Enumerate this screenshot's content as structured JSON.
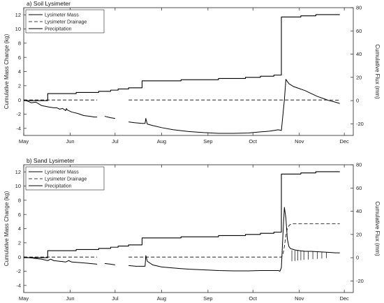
{
  "chart_data": [
    {
      "type": "line",
      "title": "a) Soil Lysimeter",
      "ylabel": "Cumulative Mass Change (kg)",
      "y2label": "Cumulative Flux (mm)",
      "ylim": [
        -5,
        13
      ],
      "y2lim": [
        -30,
        80
      ],
      "yticks": [
        -4,
        -2,
        0,
        2,
        4,
        6,
        8,
        10,
        12
      ],
      "y2ticks": [
        -20,
        0,
        20,
        40,
        60,
        80
      ],
      "xlim": [
        0,
        220
      ],
      "x_unit": "days since May 1",
      "xticks": [
        {
          "x": 0,
          "label": "May"
        },
        {
          "x": 31,
          "label": "Jun"
        },
        {
          "x": 61,
          "label": "Jul"
        },
        {
          "x": 92,
          "label": "Aug"
        },
        {
          "x": 123,
          "label": "Sep"
        },
        {
          "x": 153,
          "label": "Oct"
        },
        {
          "x": 184,
          "label": "Nov"
        },
        {
          "x": 214,
          "label": "Dec"
        }
      ],
      "legend_position": "top-left",
      "series": [
        {
          "name": "Lysimeter Mass",
          "style": "solid",
          "width": 1.0,
          "axis": "left",
          "segments": [
            [
              [
                0,
                0
              ],
              [
                3,
                -0.2
              ],
              [
                5,
                -0.4
              ],
              [
                8,
                -0.3
              ],
              [
                12,
                -0.8
              ],
              [
                17,
                -1.0
              ],
              [
                20,
                -1.1
              ],
              [
                22,
                -1.1
              ],
              [
                24,
                -1.3
              ],
              [
                26,
                -1.2
              ],
              [
                28,
                -1.5
              ],
              [
                28.5,
                -1.2
              ],
              [
                29,
                -1.4
              ],
              [
                32,
                -1.7
              ],
              [
                36,
                -1.9
              ],
              [
                40,
                -2.2
              ],
              [
                44,
                -2.3
              ],
              [
                47,
                -2.4
              ],
              [
                49,
                -2.4
              ]
            ],
            [
              [
                54,
                -2.3
              ],
              [
                58,
                -2.5
              ],
              [
                61,
                -2.6
              ]
            ],
            [
              [
                70,
                -3.1
              ],
              [
                74,
                -3.2
              ],
              [
                79,
                -3.3
              ],
              [
                81,
                -3.3
              ],
              [
                81.5,
                -2.6
              ],
              [
                82.5,
                -3.4
              ],
              [
                86,
                -3.6
              ],
              [
                92,
                -3.9
              ],
              [
                100,
                -4.2
              ],
              [
                110,
                -4.45
              ],
              [
                120,
                -4.6
              ],
              [
                130,
                -4.7
              ],
              [
                140,
                -4.7
              ],
              [
                150,
                -4.65
              ],
              [
                158,
                -4.5
              ],
              [
                164,
                -4.4
              ],
              [
                170,
                -4.2
              ],
              [
                172,
                -4.3
              ],
              [
                174,
                0.0
              ],
              [
                175,
                2.9
              ],
              [
                177,
                2.3
              ],
              [
                180,
                1.9
              ],
              [
                184,
                1.6
              ],
              [
                188,
                1.3
              ],
              [
                192,
                0.9
              ],
              [
                196,
                0.5
              ],
              [
                200,
                0.2
              ],
              [
                204,
                -0.1
              ],
              [
                208,
                -0.3
              ],
              [
                211,
                -0.5
              ]
            ]
          ]
        },
        {
          "name": "Lysimeter Drainage",
          "style": "dashed",
          "width": 0.8,
          "axis": "left",
          "segments": [
            [
              [
                0,
                0
              ],
              [
                49,
                0
              ]
            ],
            [
              [
                70,
                0
              ],
              [
                204,
                0
              ],
              [
                211,
                -0.05
              ]
            ]
          ]
        },
        {
          "name": "Precipitation",
          "style": "solid",
          "width": 1.1,
          "axis": "right",
          "segments": [
            [
              [
                0,
                0
              ],
              [
                16,
                0
              ],
              [
                16,
                6
              ],
              [
                35,
                6
              ],
              [
                35,
                7
              ],
              [
                50,
                7
              ],
              [
                50,
                8
              ],
              [
                58,
                8
              ],
              [
                58,
                9
              ],
              [
                63,
                9
              ],
              [
                63,
                10
              ],
              [
                70,
                10
              ],
              [
                70,
                11
              ],
              [
                79,
                11
              ],
              [
                79,
                17
              ],
              [
                105,
                17
              ],
              [
                105,
                18
              ],
              [
                130,
                18
              ],
              [
                130,
                19
              ],
              [
                148,
                19
              ],
              [
                148,
                20
              ],
              [
                158,
                20
              ],
              [
                158,
                21
              ],
              [
                167,
                21
              ],
              [
                167,
                22
              ],
              [
                172,
                22
              ],
              [
                172,
                72
              ],
              [
                185,
                72
              ],
              [
                185,
                73
              ],
              [
                195,
                73
              ],
              [
                195,
                74
              ],
              [
                211,
                74
              ]
            ]
          ]
        }
      ]
    },
    {
      "type": "line",
      "title": "b) Sand Lysimeter",
      "ylabel": "Cumulative Mass Change (kg)",
      "y2label": "Cumulative Flux (mm)",
      "ylim": [
        -5,
        13
      ],
      "y2lim": [
        -30,
        80
      ],
      "yticks": [
        -4,
        -2,
        0,
        2,
        4,
        6,
        8,
        10,
        12
      ],
      "y2ticks": [
        -20,
        0,
        20,
        40,
        60,
        80
      ],
      "xlim": [
        0,
        220
      ],
      "x_unit": "days since May 1",
      "xticks": [
        {
          "x": 0,
          "label": "May"
        },
        {
          "x": 31,
          "label": "Jun"
        },
        {
          "x": 61,
          "label": "Jul"
        },
        {
          "x": 92,
          "label": "Aug"
        },
        {
          "x": 123,
          "label": "Sep"
        },
        {
          "x": 153,
          "label": "Oct"
        },
        {
          "x": 184,
          "label": "Nov"
        },
        {
          "x": 214,
          "label": "Dec"
        }
      ],
      "legend_position": "top-left",
      "series": [
        {
          "name": "Lysimeter Mass",
          "style": "solid",
          "width": 1.0,
          "axis": "left",
          "segments": [
            [
              [
                0,
                0
              ],
              [
                4,
                -0.1
              ],
              [
                8,
                -0.2
              ],
              [
                12,
                -0.3
              ],
              [
                16,
                -0.5
              ],
              [
                18,
                -0.3
              ],
              [
                20,
                -0.5
              ],
              [
                24,
                -0.6
              ],
              [
                28,
                -0.7
              ],
              [
                30,
                -0.5
              ],
              [
                32,
                -0.7
              ],
              [
                38,
                -0.8
              ],
              [
                44,
                -0.9
              ],
              [
                49,
                -1.0
              ]
            ],
            [
              [
                54,
                -0.9
              ],
              [
                58,
                -1.0
              ],
              [
                61,
                -1.1
              ]
            ],
            [
              [
                70,
                -1.2
              ],
              [
                75,
                -1.3
              ],
              [
                81,
                -1.3
              ],
              [
                81.5,
                0.2
              ],
              [
                82.5,
                -0.6
              ],
              [
                86,
                -1.1
              ],
              [
                92,
                -1.4
              ],
              [
                100,
                -1.55
              ],
              [
                110,
                -1.7
              ],
              [
                120,
                -1.8
              ],
              [
                130,
                -1.9
              ],
              [
                140,
                -1.95
              ],
              [
                150,
                -1.95
              ],
              [
                158,
                -1.9
              ],
              [
                164,
                -1.9
              ],
              [
                170,
                -1.9
              ],
              [
                171,
                -2.0
              ],
              [
                172,
                -1.5
              ],
              [
                173,
                3.0
              ],
              [
                174,
                7.0
              ],
              [
                175,
                5.5
              ],
              [
                176,
                2.5
              ],
              [
                177,
                1.5
              ],
              [
                178,
                1.2
              ],
              [
                181,
                1.0
              ],
              [
                184,
                0.9
              ],
              [
                188,
                0.8
              ],
              [
                192,
                0.8
              ],
              [
                196,
                0.75
              ],
              [
                200,
                0.7
              ],
              [
                204,
                0.65
              ],
              [
                208,
                0.6
              ],
              [
                211,
                0.6
              ]
            ]
          ]
        },
        {
          "name": "Lysimeter Drainage",
          "style": "dashed",
          "width": 0.8,
          "axis": "left",
          "segments": [
            [
              [
                0,
                0
              ],
              [
                49,
                0
              ]
            ],
            [
              [
                70,
                0
              ],
              [
                172,
                0
              ],
              [
                173,
                0.3
              ],
              [
                174,
                1.5
              ],
              [
                175,
                3.0
              ],
              [
                176,
                4.0
              ],
              [
                177,
                4.4
              ],
              [
                178,
                4.6
              ],
              [
                180,
                4.7
              ],
              [
                190,
                4.7
              ],
              [
                200,
                4.7
              ],
              [
                211,
                4.7
              ]
            ]
          ]
        },
        {
          "name": "Precipitation",
          "style": "solid",
          "width": 1.1,
          "axis": "right",
          "segments": [
            [
              [
                0,
                0
              ],
              [
                16,
                0
              ],
              [
                16,
                6
              ],
              [
                35,
                6
              ],
              [
                35,
                7
              ],
              [
                50,
                7
              ],
              [
                50,
                8
              ],
              [
                58,
                8
              ],
              [
                58,
                9
              ],
              [
                63,
                9
              ],
              [
                63,
                10
              ],
              [
                70,
                10
              ],
              [
                70,
                11
              ],
              [
                79,
                11
              ],
              [
                79,
                17
              ],
              [
                105,
                17
              ],
              [
                105,
                18
              ],
              [
                130,
                18
              ],
              [
                130,
                19
              ],
              [
                148,
                19
              ],
              [
                148,
                20
              ],
              [
                158,
                20
              ],
              [
                158,
                21
              ],
              [
                167,
                21
              ],
              [
                167,
                22
              ],
              [
                172,
                22
              ],
              [
                172,
                72
              ],
              [
                185,
                72
              ],
              [
                185,
                73
              ],
              [
                195,
                73
              ],
              [
                195,
                74
              ],
              [
                211,
                74
              ]
            ]
          ]
        }
      ]
    }
  ]
}
